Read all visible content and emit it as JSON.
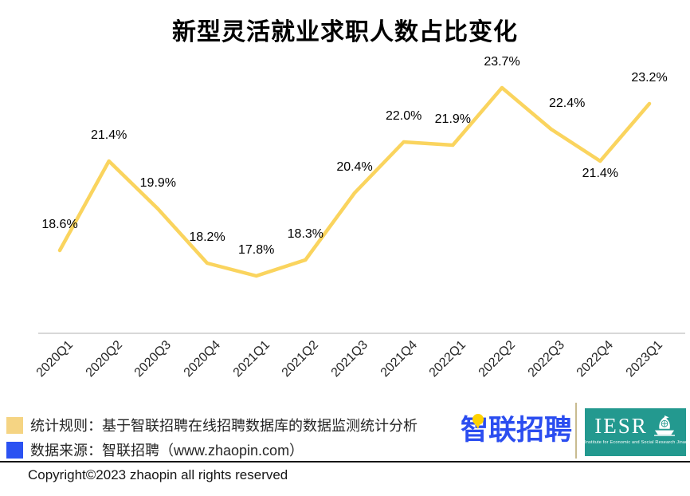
{
  "chart_data": {
    "type": "line",
    "title": "新型灵活就业求职人数占比变化",
    "categories": [
      "2020Q1",
      "2020Q2",
      "2020Q3",
      "2020Q4",
      "2021Q1",
      "2021Q2",
      "2021Q3",
      "2021Q4",
      "2022Q1",
      "2022Q2",
      "2022Q3",
      "2022Q4",
      "2023Q1"
    ],
    "values": [
      18.6,
      21.4,
      19.9,
      18.2,
      17.8,
      18.3,
      20.4,
      22.0,
      21.9,
      23.7,
      22.4,
      21.4,
      23.2
    ],
    "labels": [
      "18.6%",
      "21.4%",
      "19.9%",
      "18.2%",
      "17.8%",
      "18.3%",
      "20.4%",
      "22.0%",
      "21.9%",
      "23.7%",
      "22.4%",
      "21.4%",
      "23.2%"
    ],
    "label_positions": [
      "above",
      "above",
      "above",
      "above",
      "above",
      "above",
      "above",
      "above",
      "above",
      "above",
      "above",
      "below",
      "above"
    ],
    "label_dx": [
      0,
      0,
      0,
      0,
      0,
      0,
      0,
      0,
      0,
      0,
      20,
      0,
      0
    ],
    "xlabel": "",
    "ylabel": "",
    "ylim": [
      16,
      25.5
    ],
    "grid": false,
    "legend_position": "none",
    "line_color": "#FAD45E",
    "axis_color": "#D8D8D8"
  },
  "footer": {
    "legend": [
      {
        "swatch_color": "#F5D483",
        "text": "统计规则：基于智联招聘在线招聘数据库的数据监测统计分析"
      },
      {
        "swatch_color": "#2B52F2",
        "text": "数据来源：智联招聘（www.zhaopin.com）"
      }
    ],
    "copyright": "Copyright©2023 zhaopin all rights reserved"
  },
  "branding": {
    "zhaopin": {
      "text": "智联招聘",
      "color": "#2B4DF0",
      "pin_color": "#FFD200"
    },
    "divider_color": "#C8BB90",
    "iesr": {
      "acronym": "IESR",
      "subtitle": "Institute for Economic and Social Research   Jinan University",
      "bg_color": "#23998F",
      "ship_icon": "ship-icon"
    }
  }
}
